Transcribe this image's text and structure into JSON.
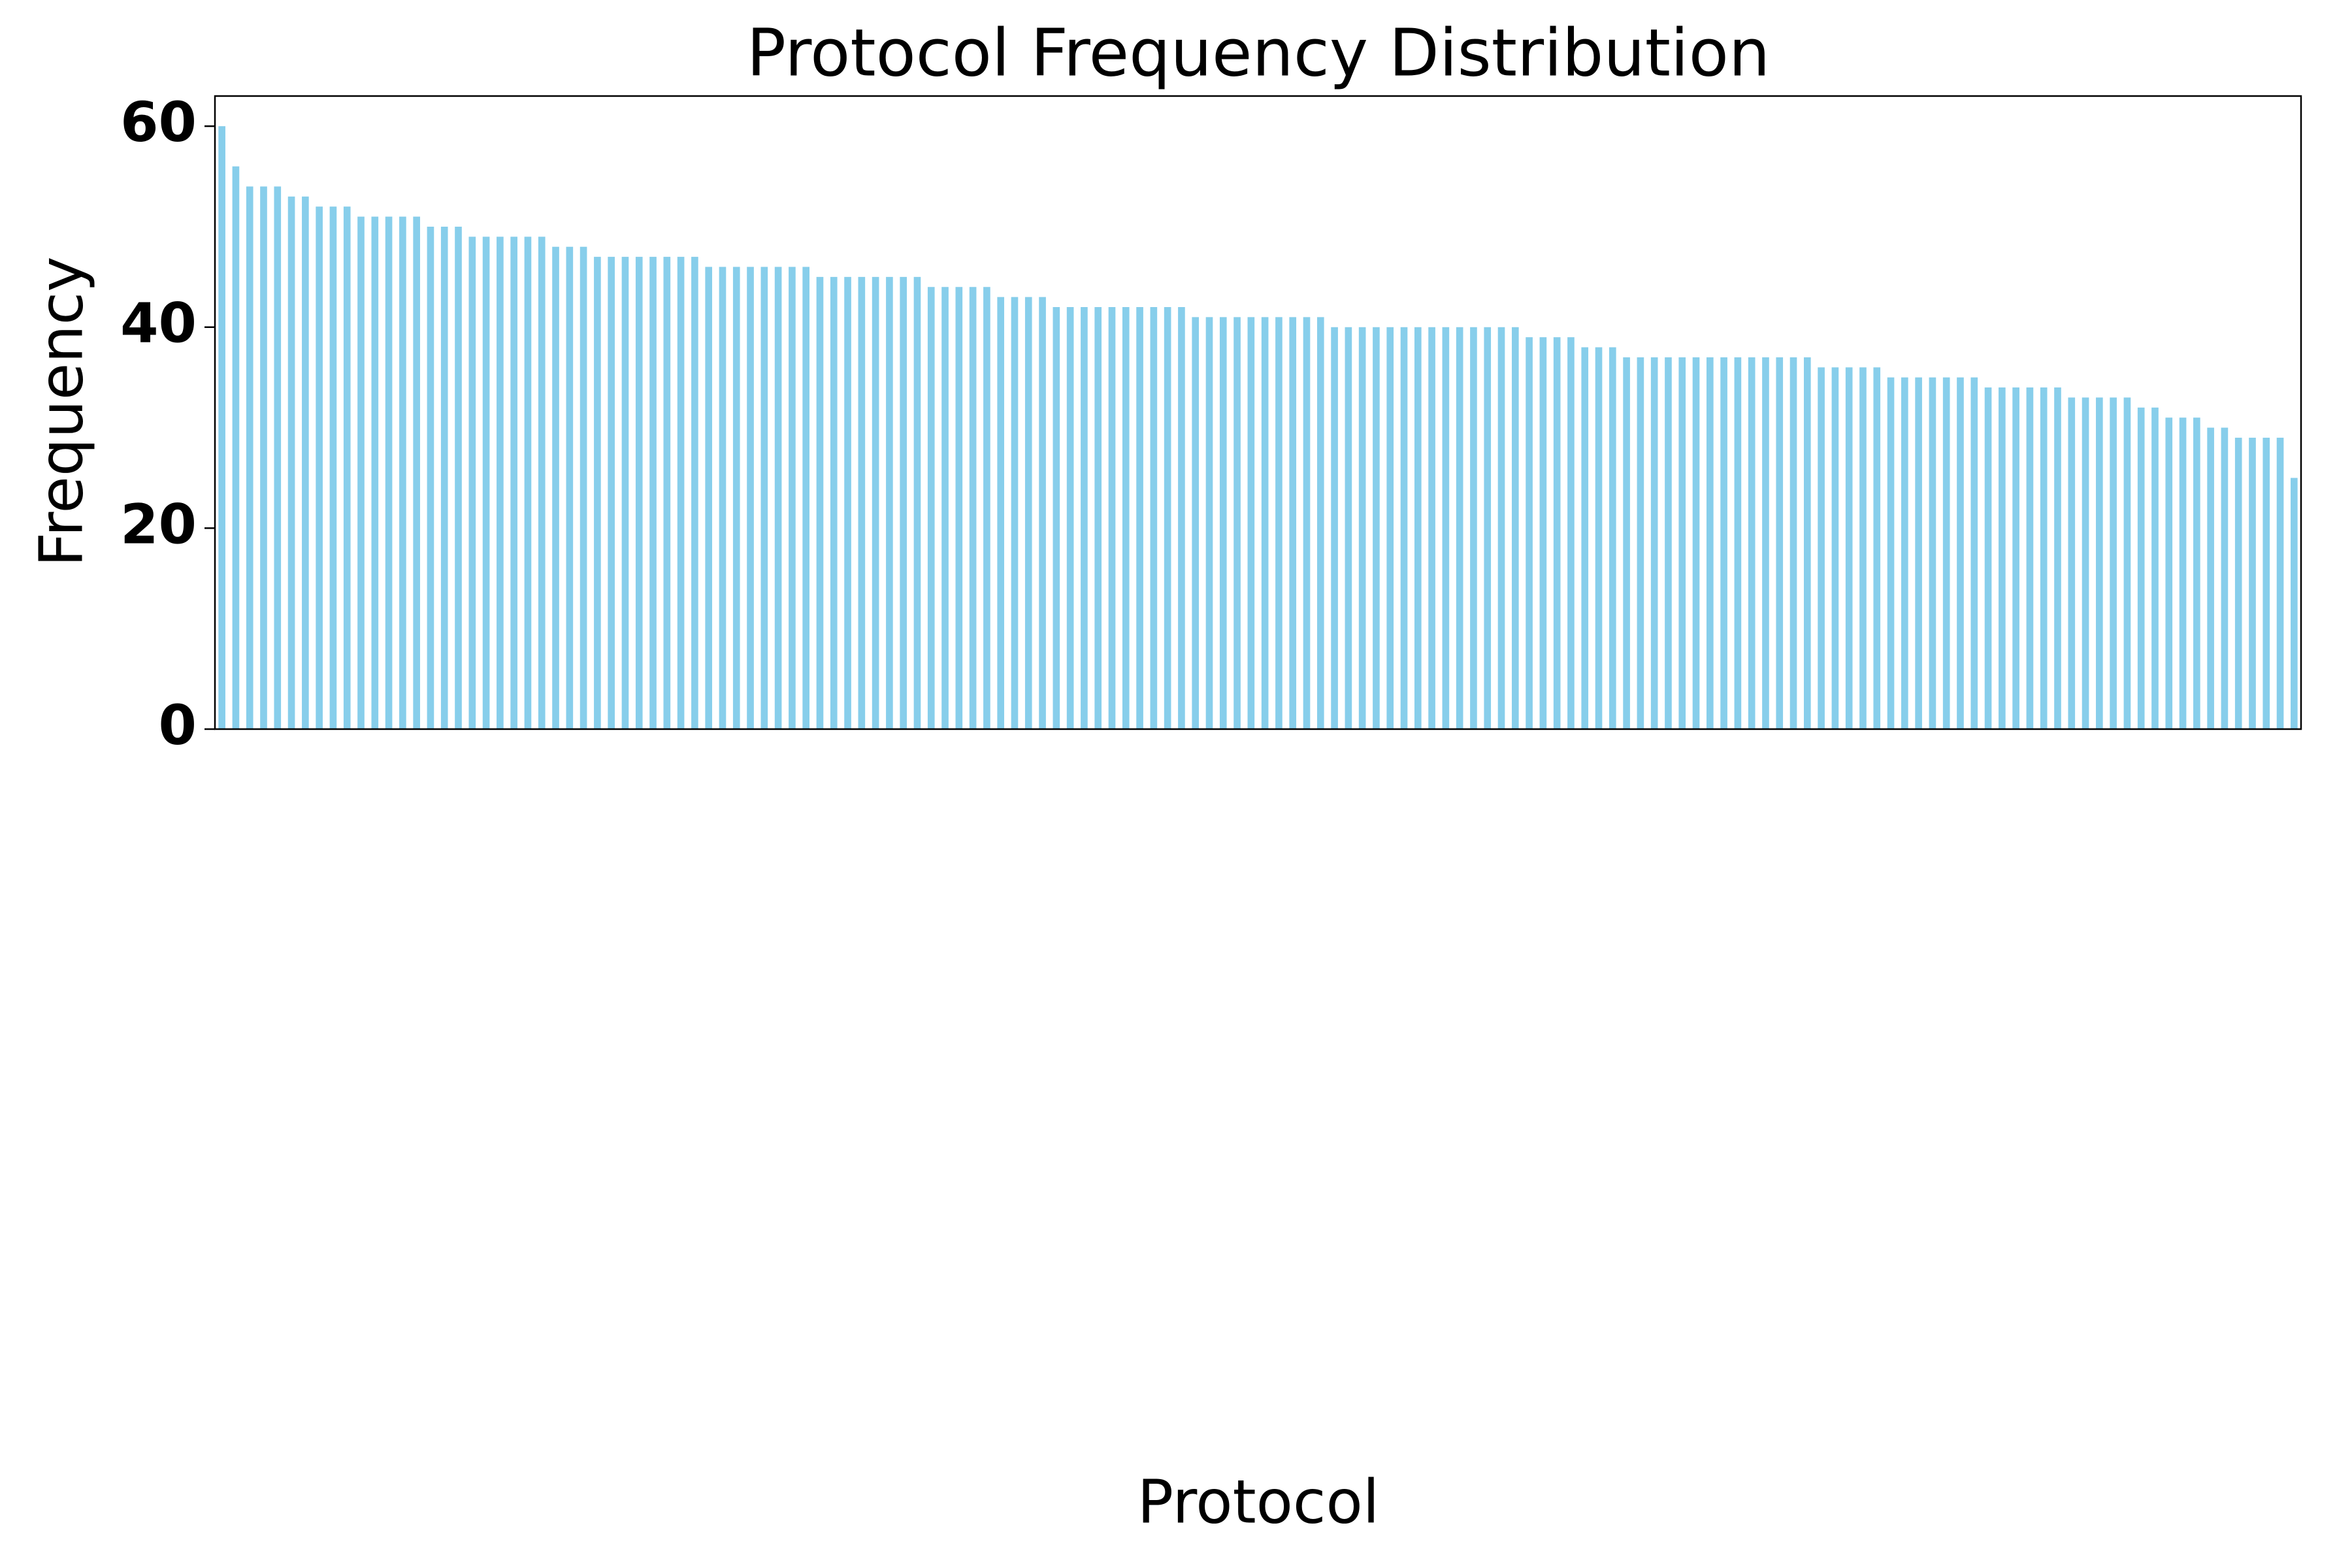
{
  "chart_data": {
    "type": "bar",
    "title": "Protocol Frequency Distribution",
    "x_label": "Protocol",
    "y_label": "Frequency",
    "color": "#87ceeb",
    "categories": [
      null,
      null,
      null,
      null,
      null,
      null,
      null,
      null,
      null,
      null,
      null,
      null,
      null,
      null,
      null,
      null,
      null,
      null,
      null,
      null,
      null,
      null,
      null,
      null,
      null,
      null,
      null,
      null,
      null,
      null,
      null,
      null,
      null,
      null,
      null,
      null,
      null,
      null,
      null,
      null,
      null,
      null,
      null,
      null,
      null,
      null,
      null,
      null,
      null,
      null,
      null,
      null,
      null,
      null,
      null,
      null,
      null,
      null,
      null,
      null,
      null,
      null,
      null,
      null,
      null,
      null,
      null,
      null,
      null,
      null,
      null,
      null,
      null,
      null,
      null,
      null,
      null,
      null,
      null,
      null,
      null,
      null,
      null,
      null,
      null,
      null,
      null,
      null,
      null,
      null,
      null,
      null,
      null,
      null,
      null,
      null,
      null,
      null,
      null,
      null,
      null,
      null,
      null,
      null,
      null,
      null,
      null,
      null,
      null,
      null,
      null,
      null,
      null,
      null,
      null,
      null,
      null,
      null,
      null,
      null,
      null,
      null,
      null,
      null,
      null,
      null,
      null,
      null,
      null,
      null,
      null,
      null,
      null,
      null,
      null,
      null,
      null,
      null,
      null,
      null,
      null,
      null,
      null,
      null,
      null,
      null,
      null,
      null,
      null,
      null
    ],
    "values": [
      60,
      56,
      54,
      54,
      54,
      53,
      53,
      52,
      52,
      52,
      51,
      51,
      51,
      51,
      51,
      50,
      50,
      50,
      49,
      49,
      49,
      49,
      49,
      49,
      48,
      48,
      48,
      47,
      47,
      47,
      47,
      47,
      47,
      47,
      47,
      46,
      46,
      46,
      46,
      46,
      46,
      46,
      46,
      45,
      45,
      45,
      45,
      45,
      45,
      45,
      45,
      44,
      44,
      44,
      44,
      44,
      43,
      43,
      43,
      43,
      42,
      42,
      42,
      42,
      42,
      42,
      42,
      42,
      42,
      42,
      41,
      41,
      41,
      41,
      41,
      41,
      41,
      41,
      41,
      41,
      40,
      40,
      40,
      40,
      40,
      40,
      40,
      40,
      40,
      40,
      40,
      40,
      40,
      40,
      39,
      39,
      39,
      39,
      38,
      38,
      38,
      37,
      37,
      37,
      37,
      37,
      37,
      37,
      37,
      37,
      37,
      37,
      37,
      37,
      37,
      36,
      36,
      36,
      36,
      36,
      35,
      35,
      35,
      35,
      35,
      35,
      35,
      34,
      34,
      34,
      34,
      34,
      34,
      33,
      33,
      33,
      33,
      33,
      32,
      32,
      31,
      31,
      31,
      30,
      30,
      29,
      29,
      29,
      29,
      25
    ],
    "ylim": [
      0,
      63
    ],
    "yticks": [
      0,
      20,
      40,
      60
    ],
    "grid": false
  }
}
